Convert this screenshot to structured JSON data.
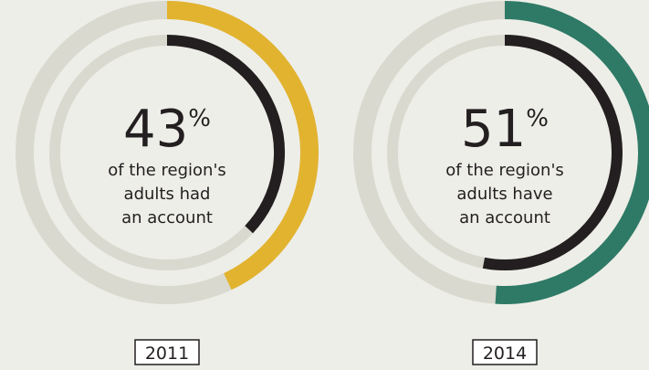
{
  "chart_data": [
    {
      "type": "donut",
      "value": 43,
      "unit": "%",
      "inner_value": 37,
      "color": "#e2b32f",
      "inner_color": "#231f20",
      "track_color": "#d9d9cf",
      "caption": [
        "of the region's",
        "adults had",
        "an account"
      ],
      "year": "2011"
    },
    {
      "type": "donut",
      "value": 51,
      "unit": "%",
      "inner_value": 53,
      "color": "#2e7a66",
      "inner_color": "#231f20",
      "track_color": "#d9d9cf",
      "caption": [
        "of the region's",
        "adults have",
        "an account"
      ],
      "year": "2014"
    }
  ]
}
